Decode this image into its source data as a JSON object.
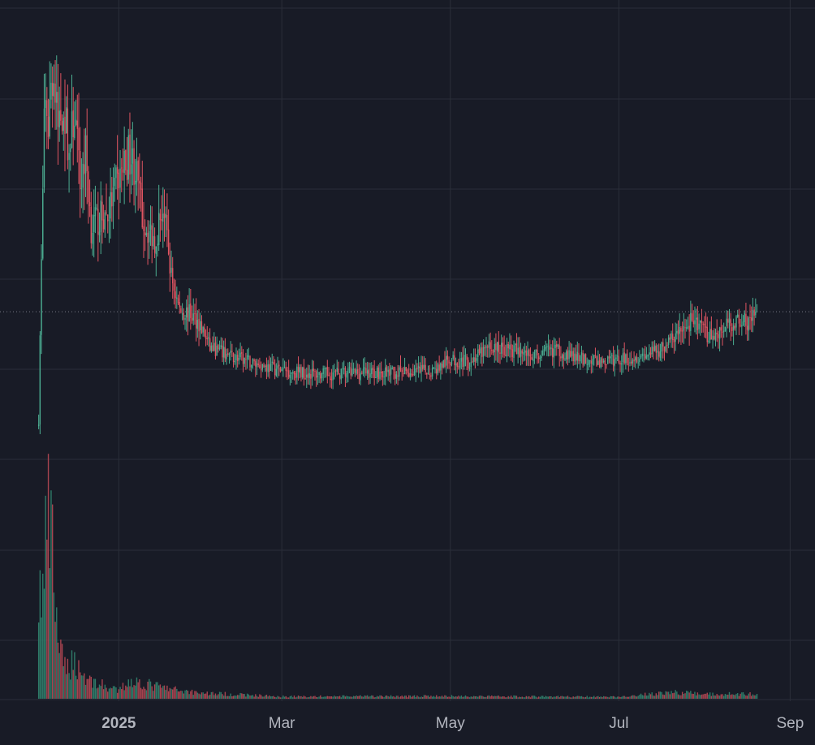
{
  "chart_data": {
    "type": "candlestick",
    "x_axis": {
      "ticks": [
        {
          "label": "2025",
          "date": "2025-01-01",
          "bold": true
        },
        {
          "label": "Mar",
          "date": "2025-03-01",
          "bold": false
        },
        {
          "label": "May",
          "date": "2025-05-01",
          "bold": false
        },
        {
          "label": "Jul",
          "date": "2025-07-01",
          "bold": false
        },
        {
          "label": "Sep",
          "date": "2025-09-01",
          "bold": false
        }
      ],
      "range": [
        "2024-11-19",
        "2025-09-10"
      ]
    },
    "y_axis_scale": "linear",
    "y_range": [
      0,
      100
    ],
    "last_price": 35.6,
    "volume_range": [
      0,
      100
    ],
    "price_path": [
      [
        "2024-12-03",
        10
      ],
      [
        "2024-12-04",
        48
      ],
      [
        "2024-12-05",
        85
      ],
      [
        "2024-12-06",
        78
      ],
      [
        "2024-12-08",
        94
      ],
      [
        "2024-12-10",
        80
      ],
      [
        "2024-12-12",
        86
      ],
      [
        "2024-12-14",
        74
      ],
      [
        "2024-12-16",
        84
      ],
      [
        "2024-12-18",
        66
      ],
      [
        "2024-12-20",
        74
      ],
      [
        "2024-12-22",
        56
      ],
      [
        "2024-12-25",
        58
      ],
      [
        "2024-12-28",
        59
      ],
      [
        "2025-01-01",
        68
      ],
      [
        "2025-01-05",
        74
      ],
      [
        "2025-01-07",
        70
      ],
      [
        "2025-01-10",
        57
      ],
      [
        "2025-01-14",
        53
      ],
      [
        "2025-01-17",
        61
      ],
      [
        "2025-01-20",
        44
      ],
      [
        "2025-01-23",
        36
      ],
      [
        "2025-01-27",
        35
      ],
      [
        "2025-01-30",
        33
      ],
      [
        "2025-02-03",
        27
      ],
      [
        "2025-02-10",
        25
      ],
      [
        "2025-02-20",
        23
      ],
      [
        "2025-03-01",
        21.5
      ],
      [
        "2025-03-15",
        20.5
      ],
      [
        "2025-04-01",
        21
      ],
      [
        "2025-04-15",
        20.8
      ],
      [
        "2025-04-25",
        21.5
      ],
      [
        "2025-05-01",
        24
      ],
      [
        "2025-05-08",
        23.5
      ],
      [
        "2025-05-15",
        27
      ],
      [
        "2025-05-22",
        26.5
      ],
      [
        "2025-06-01",
        25
      ],
      [
        "2025-06-08",
        26.5
      ],
      [
        "2025-06-15",
        24.5
      ],
      [
        "2025-06-25",
        23.5
      ],
      [
        "2025-07-05",
        24.5
      ],
      [
        "2025-07-15",
        26
      ],
      [
        "2025-07-20",
        29
      ],
      [
        "2025-07-24",
        31
      ],
      [
        "2025-07-28",
        34
      ],
      [
        "2025-08-01",
        30.5
      ],
      [
        "2025-08-04",
        29.5
      ],
      [
        "2025-08-08",
        31.5
      ],
      [
        "2025-08-12",
        33.5
      ],
      [
        "2025-08-16",
        33
      ],
      [
        "2025-08-20",
        35.6
      ]
    ],
    "volume_path": [
      [
        "2024-12-03",
        55
      ],
      [
        "2024-12-05",
        58
      ],
      [
        "2024-12-06",
        100
      ],
      [
        "2024-12-08",
        75
      ],
      [
        "2024-12-10",
        33
      ],
      [
        "2024-12-12",
        16
      ],
      [
        "2024-12-16",
        20
      ],
      [
        "2024-12-20",
        11
      ],
      [
        "2024-12-28",
        6
      ],
      [
        "2025-01-01",
        4
      ],
      [
        "2025-01-05",
        10
      ],
      [
        "2025-01-10",
        8
      ],
      [
        "2025-01-20",
        5
      ],
      [
        "2025-02-01",
        3
      ],
      [
        "2025-03-01",
        1.2
      ],
      [
        "2025-05-01",
        1.4
      ],
      [
        "2025-07-01",
        1.0
      ],
      [
        "2025-07-20",
        3.5
      ],
      [
        "2025-08-01",
        2.5
      ],
      [
        "2025-08-20",
        2.5
      ]
    ],
    "colors": {
      "background": "#181b26",
      "grid": "#2a2e39",
      "up": "#4cae92",
      "down": "#e05562",
      "up_volume": "#2f7a68",
      "down_volume": "#a84450",
      "last_price_line": "#787b86",
      "axis_text": "#b2b5be"
    },
    "grid": true,
    "legend": "none"
  }
}
